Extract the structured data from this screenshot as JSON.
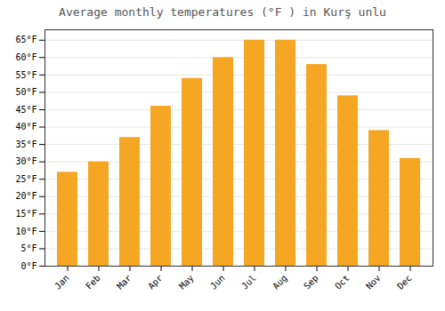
{
  "chart_data": {
    "type": "bar",
    "title": "Average monthly temperatures (°F ) in Kurş unlu",
    "categories": [
      "Jan",
      "Feb",
      "Mar",
      "Apr",
      "May",
      "Jun",
      "Jul",
      "Aug",
      "Sep",
      "Oct",
      "Nov",
      "Dec"
    ],
    "values": [
      27,
      30,
      37,
      46,
      54,
      60,
      65,
      65,
      58,
      49,
      39,
      31
    ],
    "color": "#F5A623",
    "ylim": [
      0,
      68
    ],
    "yticks": [
      {
        "value": 0,
        "label": "0°F"
      },
      {
        "value": 5,
        "label": "5°F"
      },
      {
        "value": 10,
        "label": "10°F"
      },
      {
        "value": 15,
        "label": "15°F"
      },
      {
        "value": 20,
        "label": "20°F"
      },
      {
        "value": 25,
        "label": "25°F"
      },
      {
        "value": 30,
        "label": "30°F"
      },
      {
        "value": 35,
        "label": "35°F"
      },
      {
        "value": 40,
        "label": "40°F"
      },
      {
        "value": 45,
        "label": "45°F"
      },
      {
        "value": 50,
        "label": "50°F"
      },
      {
        "value": 55,
        "label": "55°F"
      },
      {
        "value": 60,
        "label": "60°F"
      },
      {
        "value": 65,
        "label": "65°F"
      }
    ],
    "grid": true
  }
}
